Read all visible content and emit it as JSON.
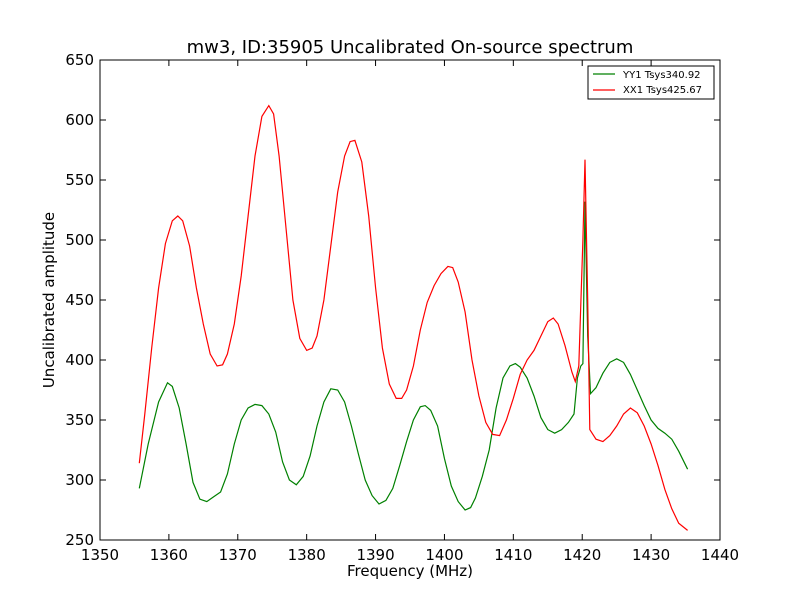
{
  "chart_data": {
    "type": "line",
    "title": "mw3, ID:35905 Uncalibrated On-source spectrum",
    "xlabel": "Frequency (MHz)",
    "ylabel": "Uncalibrated amplitude",
    "xlim": [
      1350,
      1440
    ],
    "ylim": [
      250,
      650
    ],
    "xticks": [
      "1350",
      "1360",
      "1370",
      "1380",
      "1390",
      "1400",
      "1410",
      "1420",
      "1430",
      "1440"
    ],
    "yticks": [
      "250",
      "300",
      "350",
      "400",
      "450",
      "500",
      "550",
      "600",
      "650"
    ],
    "grid": false,
    "legend_position": "top-right",
    "series": [
      {
        "name": "YY1 Tsys340.92",
        "color": "#008000",
        "points": [
          [
            1355.7,
            293
          ],
          [
            1357,
            330
          ],
          [
            1358.5,
            365
          ],
          [
            1359.8,
            381
          ],
          [
            1360.5,
            378
          ],
          [
            1361.5,
            360
          ],
          [
            1362.5,
            330
          ],
          [
            1363.5,
            298
          ],
          [
            1364.5,
            284
          ],
          [
            1365.5,
            282
          ],
          [
            1366.5,
            286
          ],
          [
            1367.5,
            290
          ],
          [
            1368.5,
            305
          ],
          [
            1369.5,
            330
          ],
          [
            1370.5,
            350
          ],
          [
            1371.5,
            360
          ],
          [
            1372.5,
            363
          ],
          [
            1373.5,
            362
          ],
          [
            1374.5,
            355
          ],
          [
            1375.5,
            340
          ],
          [
            1376.5,
            315
          ],
          [
            1377.5,
            300
          ],
          [
            1378.5,
            296
          ],
          [
            1379.5,
            303
          ],
          [
            1380.5,
            320
          ],
          [
            1381.5,
            345
          ],
          [
            1382.5,
            365
          ],
          [
            1383.5,
            376
          ],
          [
            1384.5,
            375
          ],
          [
            1385.5,
            365
          ],
          [
            1386.5,
            345
          ],
          [
            1387.5,
            322
          ],
          [
            1388.5,
            300
          ],
          [
            1389.5,
            287
          ],
          [
            1390.5,
            280
          ],
          [
            1391.5,
            283
          ],
          [
            1392.5,
            293
          ],
          [
            1393.5,
            312
          ],
          [
            1394.5,
            332
          ],
          [
            1395.5,
            350
          ],
          [
            1396.5,
            361
          ],
          [
            1397.2,
            362
          ],
          [
            1398,
            358
          ],
          [
            1399,
            345
          ],
          [
            1400,
            318
          ],
          [
            1401,
            295
          ],
          [
            1402,
            282
          ],
          [
            1403,
            275
          ],
          [
            1403.8,
            277
          ],
          [
            1404.5,
            285
          ],
          [
            1405.5,
            303
          ],
          [
            1406.5,
            325
          ],
          [
            1407.5,
            360
          ],
          [
            1408.5,
            385
          ],
          [
            1409.5,
            395
          ],
          [
            1410.3,
            397
          ],
          [
            1411,
            394
          ],
          [
            1412,
            385
          ],
          [
            1413,
            370
          ],
          [
            1414,
            352
          ],
          [
            1415,
            342
          ],
          [
            1416,
            339
          ],
          [
            1417,
            342
          ],
          [
            1418,
            348
          ],
          [
            1418.8,
            355
          ],
          [
            1419.3,
            385
          ],
          [
            1419.8,
            395
          ],
          [
            1420.1,
            397
          ],
          [
            1420.4,
            532
          ],
          [
            1420.8,
            420
          ],
          [
            1421.2,
            372
          ],
          [
            1422,
            377
          ],
          [
            1423,
            389
          ],
          [
            1424,
            398
          ],
          [
            1425,
            401
          ],
          [
            1426,
            398
          ],
          [
            1427,
            388
          ],
          [
            1428,
            375
          ],
          [
            1429,
            362
          ],
          [
            1430,
            350
          ],
          [
            1431,
            343
          ],
          [
            1432,
            339
          ],
          [
            1433,
            334
          ],
          [
            1434,
            324
          ],
          [
            1435.3,
            309
          ]
        ]
      },
      {
        "name": "XX1 Tsys425.67",
        "color": "#ff0000",
        "points": [
          [
            1355.7,
            314
          ],
          [
            1356.5,
            355
          ],
          [
            1357.5,
            410
          ],
          [
            1358.5,
            460
          ],
          [
            1359.5,
            497
          ],
          [
            1360.5,
            516
          ],
          [
            1361.3,
            520
          ],
          [
            1362,
            516
          ],
          [
            1363,
            495
          ],
          [
            1364,
            460
          ],
          [
            1365,
            430
          ],
          [
            1366,
            405
          ],
          [
            1367,
            395
          ],
          [
            1367.8,
            396
          ],
          [
            1368.5,
            405
          ],
          [
            1369.5,
            430
          ],
          [
            1370.5,
            470
          ],
          [
            1371.5,
            520
          ],
          [
            1372.5,
            570
          ],
          [
            1373.5,
            603
          ],
          [
            1374.5,
            612
          ],
          [
            1375.2,
            605
          ],
          [
            1376,
            570
          ],
          [
            1377,
            510
          ],
          [
            1378,
            450
          ],
          [
            1379,
            418
          ],
          [
            1380,
            408
          ],
          [
            1380.8,
            410
          ],
          [
            1381.5,
            420
          ],
          [
            1382.5,
            450
          ],
          [
            1383.5,
            495
          ],
          [
            1384.5,
            540
          ],
          [
            1385.5,
            570
          ],
          [
            1386.3,
            582
          ],
          [
            1387,
            583
          ],
          [
            1388,
            565
          ],
          [
            1389,
            520
          ],
          [
            1390,
            460
          ],
          [
            1391,
            410
          ],
          [
            1392,
            380
          ],
          [
            1393,
            368
          ],
          [
            1393.8,
            368
          ],
          [
            1394.5,
            375
          ],
          [
            1395.5,
            395
          ],
          [
            1396.5,
            425
          ],
          [
            1397.5,
            448
          ],
          [
            1398.5,
            462
          ],
          [
            1399.5,
            472
          ],
          [
            1400.5,
            478
          ],
          [
            1401.2,
            477
          ],
          [
            1402,
            465
          ],
          [
            1403,
            440
          ],
          [
            1404,
            400
          ],
          [
            1405,
            370
          ],
          [
            1406,
            348
          ],
          [
            1407,
            338
          ],
          [
            1408,
            337
          ],
          [
            1409,
            350
          ],
          [
            1410,
            368
          ],
          [
            1411,
            388
          ],
          [
            1412,
            400
          ],
          [
            1413,
            408
          ],
          [
            1414,
            420
          ],
          [
            1415,
            432
          ],
          [
            1415.8,
            435
          ],
          [
            1416.5,
            430
          ],
          [
            1417.5,
            412
          ],
          [
            1418.5,
            390
          ],
          [
            1419,
            382
          ],
          [
            1419.5,
            395
          ],
          [
            1420.1,
            500
          ],
          [
            1420.4,
            567
          ],
          [
            1420.8,
            450
          ],
          [
            1421.1,
            342
          ],
          [
            1422,
            334
          ],
          [
            1423,
            332
          ],
          [
            1424,
            337
          ],
          [
            1425,
            345
          ],
          [
            1426,
            355
          ],
          [
            1427,
            360
          ],
          [
            1428,
            356
          ],
          [
            1429,
            345
          ],
          [
            1430,
            330
          ],
          [
            1431,
            312
          ],
          [
            1432,
            292
          ],
          [
            1433,
            276
          ],
          [
            1434,
            264
          ],
          [
            1435.3,
            258
          ]
        ]
      }
    ]
  }
}
